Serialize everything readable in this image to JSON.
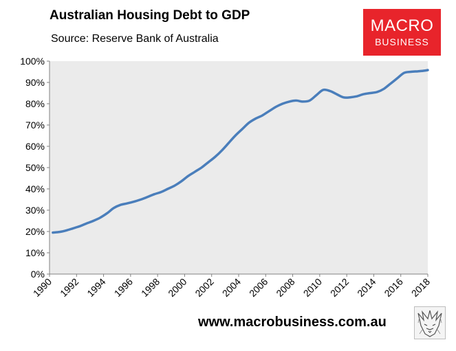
{
  "header": {
    "title": "Australian Housing Debt to GDP",
    "subtitle": "Source: Reserve Bank of Australia"
  },
  "logo": {
    "line1": "MACRO",
    "line2": "BUSINESS",
    "color": "#e8242b"
  },
  "footer": {
    "website": "www.macrobusiness.com.au",
    "mascot_icon": "wolf-sketch-icon"
  },
  "chart_data": {
    "type": "line",
    "title": "Australian Housing Debt to GDP",
    "xlabel": "",
    "ylabel": "",
    "xlim": [
      1990,
      2018
    ],
    "ylim": [
      0,
      100
    ],
    "grid": {
      "horizontal": false,
      "vertical": false
    },
    "plot_background": "#ebebeb",
    "xticks": [
      "1990",
      "1992",
      "1994",
      "1996",
      "1998",
      "2000",
      "2002",
      "2004",
      "2006",
      "2008",
      "2010",
      "2012",
      "2014",
      "2016",
      "2018"
    ],
    "yticks": [
      "0%",
      "10%",
      "20%",
      "30%",
      "40%",
      "50%",
      "60%",
      "70%",
      "80%",
      "90%",
      "100%"
    ],
    "series": [
      {
        "color": "#4a7ebb",
        "x": [
          1990.25,
          1990.75,
          1991.25,
          1991.75,
          1992.25,
          1992.75,
          1993.25,
          1993.75,
          1994.25,
          1994.75,
          1995.25,
          1995.75,
          1996.25,
          1996.75,
          1997.25,
          1997.75,
          1998.25,
          1998.75,
          1999.25,
          1999.75,
          2000.25,
          2000.75,
          2001.25,
          2001.75,
          2002.25,
          2002.75,
          2003.25,
          2003.75,
          2004.25,
          2004.75,
          2005.25,
          2005.75,
          2006.25,
          2006.75,
          2007.25,
          2007.75,
          2008.25,
          2008.75,
          2009.25,
          2009.75,
          2010.25,
          2010.75,
          2011.25,
          2011.75,
          2012.25,
          2012.75,
          2013.25,
          2013.75,
          2014.25,
          2014.75,
          2015.25,
          2015.75,
          2016.25,
          2016.75,
          2017.25,
          2017.75,
          2018.0
        ],
        "y": [
          19.5,
          19.8,
          20.5,
          21.5,
          22.5,
          23.8,
          25.0,
          26.5,
          28.5,
          31.0,
          32.5,
          33.2,
          34.0,
          35.0,
          36.2,
          37.5,
          38.5,
          40.0,
          41.5,
          43.5,
          46.0,
          48.0,
          50.0,
          52.5,
          55.0,
          58.0,
          61.5,
          65.0,
          68.0,
          71.0,
          73.0,
          74.5,
          76.5,
          78.5,
          80.0,
          81.0,
          81.5,
          81.0,
          81.5,
          84.0,
          86.5,
          86.0,
          84.5,
          83.0,
          83.0,
          83.5,
          84.5,
          85.0,
          85.5,
          87.0,
          89.5,
          92.0,
          94.5,
          95.0,
          95.2,
          95.5,
          95.8
        ]
      }
    ]
  }
}
